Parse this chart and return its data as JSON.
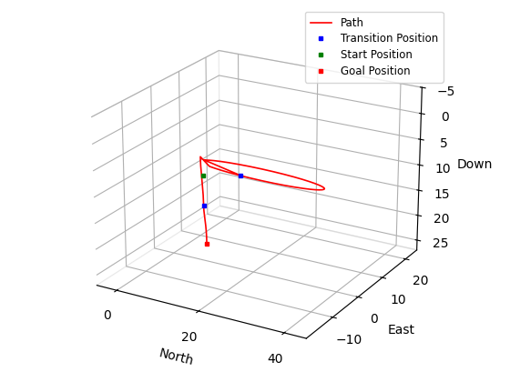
{
  "xlabel": "North",
  "ylabel": "East",
  "zlabel": "Down",
  "path_color": "#FF0000",
  "transition_color": "#0000FF",
  "start_color": "#008000",
  "goal_color": "#FF0000",
  "north_lim": [
    -5,
    45
  ],
  "east_lim": [
    -20,
    25
  ],
  "down_lim": [
    -5,
    27
  ],
  "north_ticks": [
    0,
    20,
    40
  ],
  "east_ticks": [
    -10,
    0,
    10,
    20
  ],
  "down_ticks": [
    -5,
    0,
    5,
    10,
    15,
    20,
    25
  ],
  "legend_labels": [
    "Path",
    "Transition Position",
    "Start Position",
    "Goal Position"
  ],
  "figsize": [
    5.6,
    4.2
  ],
  "dpi": 100,
  "view_elev": 22,
  "view_azim": -60
}
